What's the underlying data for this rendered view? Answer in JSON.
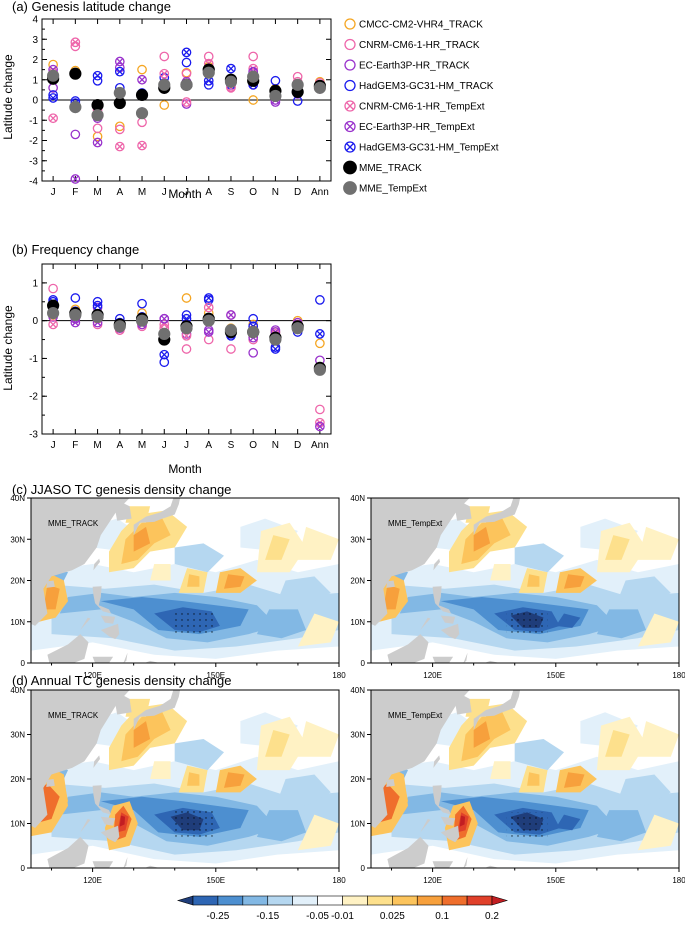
{
  "chart_data": [
    {
      "type": "scatter",
      "title": "(a) Genesis latitude change",
      "xlabel": "Month",
      "ylabel": "Latitude change",
      "categories": [
        "J",
        "F",
        "M",
        "A",
        "M",
        "J",
        "J",
        "A",
        "S",
        "O",
        "N",
        "D",
        "Ann"
      ],
      "ylim": [
        -4,
        4
      ],
      "yticks": [
        "-4",
        "-3",
        "-2",
        "-1",
        "0",
        "1",
        "2",
        "3",
        "4"
      ],
      "series": [
        {
          "name": "CMCC-CM2-VHR4_TRACK",
          "color": "#f5a623",
          "marker": "open-circle",
          "values": [
            1.75,
            1.45,
            -1.8,
            -1.3,
            1.5,
            -0.25,
            1.35,
            1.65,
            0.95,
            0.0,
            0.55,
            0.45,
            0.9
          ]
        },
        {
          "name": "CNRM-CM6-1-HR_TRACK",
          "color": "#ee66aa",
          "marker": "open-circle",
          "values": [
            1.35,
            2.65,
            -1.4,
            -1.45,
            -1.1,
            2.15,
            1.3,
            2.15,
            0.65,
            2.15,
            0.45,
            1.15,
            0.85
          ]
        },
        {
          "name": "EC-Earth3P-HR_TRACK",
          "color": "#9932cc",
          "marker": "open-circle",
          "values": [
            0.6,
            -1.7,
            -0.9,
            1.6,
            0.2,
            0.85,
            -0.2,
            1.3,
            1.05,
            0.75,
            -0.1,
            0.3,
            0.55
          ]
        },
        {
          "name": "HadGEM3-GC31-HM_TRACK",
          "color": "#1a1aee",
          "marker": "open-circle",
          "values": [
            0.25,
            -0.05,
            0.95,
            0.6,
            -0.6,
            1.1,
            1.85,
            0.75,
            0.75,
            1.35,
            0.95,
            -0.05,
            0.65
          ]
        },
        {
          "name": "CNRM-CM6-1-HR_TempExt",
          "color": "#ee66aa",
          "marker": "crossed-circle",
          "values": [
            -0.9,
            2.85,
            -0.5,
            -2.3,
            -2.25,
            1.3,
            -0.1,
            1.8,
            0.6,
            1.55,
            0.3,
            0.9,
            0.75
          ]
        },
        {
          "name": "EC-Earth3P-HR_TempExt",
          "color": "#9932cc",
          "marker": "crossed-circle",
          "values": [
            1.5,
            -3.95,
            -2.1,
            1.9,
            1.0,
            0.55,
            0.9,
            1.55,
            0.85,
            1.4,
            0.0,
            0.65,
            0.65
          ]
        },
        {
          "name": "HadGEM3-GC31-HM_TempExt",
          "color": "#1a1aee",
          "marker": "crossed-circle",
          "values": [
            0.1,
            -0.15,
            1.2,
            1.4,
            0.35,
            0.65,
            2.35,
            0.95,
            1.55,
            0.75,
            0.2,
            0.45,
            0.6
          ]
        },
        {
          "name": "MME_TRACK",
          "color": "#000000",
          "marker": "filled-circle",
          "values": [
            1.05,
            1.3,
            -0.25,
            -0.15,
            0.25,
            0.6,
            0.75,
            1.5,
            1.0,
            0.95,
            0.45,
            0.4,
            0.7
          ]
        },
        {
          "name": "MME_TempExt",
          "color": "#707070",
          "marker": "filled-circle",
          "values": [
            1.2,
            -0.35,
            -0.75,
            0.35,
            -0.65,
            0.75,
            0.75,
            1.35,
            0.9,
            1.15,
            0.2,
            0.75,
            0.6
          ]
        }
      ]
    },
    {
      "type": "scatter",
      "title": "(b) Frequency change",
      "xlabel": "Month",
      "ylabel": "Latitude change",
      "categories": [
        "J",
        "F",
        "M",
        "A",
        "M",
        "J",
        "J",
        "A",
        "S",
        "O",
        "N",
        "D",
        "Ann"
      ],
      "ylim": [
        -3,
        1.5
      ],
      "yticks": [
        "-3",
        "-2",
        "-1",
        "0",
        "1"
      ],
      "series": [
        {
          "name": "CMCC-CM2-VHR4_TRACK",
          "color": "#f5a623",
          "marker": "open-circle",
          "values": [
            0.15,
            0.3,
            0.1,
            -0.1,
            0.2,
            -0.5,
            0.6,
            0.2,
            -0.2,
            -0.1,
            -0.3,
            0.0,
            -0.6
          ]
        },
        {
          "name": "CNRM-CM6-1-HR_TRACK",
          "color": "#ee66aa",
          "marker": "open-circle",
          "values": [
            0.85,
            0.15,
            -0.1,
            -0.25,
            -0.15,
            -0.2,
            -0.75,
            -0.5,
            -0.75,
            -0.5,
            -0.5,
            -0.2,
            -2.35
          ]
        },
        {
          "name": "EC-Earth3P-HR_TRACK",
          "color": "#9932cc",
          "marker": "open-circle",
          "values": [
            0.1,
            0.05,
            0.35,
            -0.15,
            0.05,
            0.05,
            -0.35,
            -0.25,
            -0.3,
            -0.85,
            -0.25,
            -0.1,
            -1.05
          ]
        },
        {
          "name": "HadGEM3-GC31-HM_TRACK",
          "color": "#1a1aee",
          "marker": "open-circle",
          "values": [
            0.55,
            0.6,
            0.5,
            0.05,
            0.45,
            -1.1,
            0.15,
            0.55,
            -0.35,
            0.05,
            -0.7,
            -0.3,
            0.55
          ]
        },
        {
          "name": "CNRM-CM6-1-HR_TempExt",
          "color": "#ee66aa",
          "marker": "crossed-circle",
          "values": [
            -0.1,
            0.2,
            0.05,
            -0.25,
            -0.1,
            -0.1,
            -0.4,
            0.35,
            0.15,
            -0.25,
            -0.35,
            -0.1,
            -2.7
          ]
        },
        {
          "name": "EC-Earth3P-HR_TempExt",
          "color": "#9932cc",
          "marker": "crossed-circle",
          "values": [
            0.3,
            -0.05,
            -0.05,
            -0.2,
            -0.1,
            0.05,
            -0.1,
            -0.3,
            0.15,
            -0.45,
            -0.3,
            -0.05,
            -2.8
          ]
        },
        {
          "name": "HadGEM3-GC31-HM_TempExt",
          "color": "#1a1aee",
          "marker": "crossed-circle",
          "values": [
            0.5,
            0.25,
            0.4,
            -0.05,
            0.1,
            -0.9,
            0.05,
            0.6,
            -0.4,
            -0.15,
            -0.75,
            -0.15,
            -0.35
          ]
        },
        {
          "name": "MME_TRACK",
          "color": "#000000",
          "marker": "filled-circle",
          "values": [
            0.4,
            0.2,
            0.15,
            -0.1,
            0.05,
            -0.5,
            -0.15,
            0.05,
            -0.3,
            -0.3,
            -0.45,
            -0.15,
            -1.25
          ]
        },
        {
          "name": "MME_TempExt",
          "color": "#707070",
          "marker": "filled-circle",
          "values": [
            0.2,
            0.15,
            0.1,
            -0.15,
            0.0,
            -0.35,
            -0.2,
            0.0,
            -0.25,
            -0.3,
            -0.5,
            -0.2,
            -1.3
          ]
        }
      ]
    },
    {
      "type": "heatmap",
      "title": "(c) JJASO TC genesis density change",
      "panels": [
        "MME_TRACK",
        "MME_TempExt"
      ],
      "xticks": [
        "120E",
        "150E",
        "180"
      ],
      "yticks": [
        "0",
        "10N",
        "20N",
        "30N",
        "40N"
      ],
      "xlim": [
        105,
        180
      ],
      "ylim": [
        0,
        40
      ]
    },
    {
      "type": "heatmap",
      "title": "(d) Annual TC genesis density change",
      "panels": [
        "MME_TRACK",
        "MME_TempExt"
      ],
      "xticks": [
        "120E",
        "150E",
        "180"
      ],
      "yticks": [
        "0",
        "10N",
        "20N",
        "30N",
        "40N"
      ],
      "xlim": [
        105,
        180
      ],
      "ylim": [
        0,
        40
      ]
    }
  ],
  "colorbar": {
    "labels": [
      "-0.25",
      "-0.15",
      "-0.05",
      "-0.01",
      "0.025",
      "0.1",
      "0.2"
    ],
    "colors": [
      "#1f3d7a",
      "#2e66b4",
      "#4d8fd0",
      "#82b8e4",
      "#b5d7f0",
      "#e2f0fa",
      "#ffffff",
      "#fff2c4",
      "#fde08c",
      "#fcc45c",
      "#f7a03c",
      "#ef6e2c",
      "#e0402a",
      "#c21e22"
    ]
  }
}
